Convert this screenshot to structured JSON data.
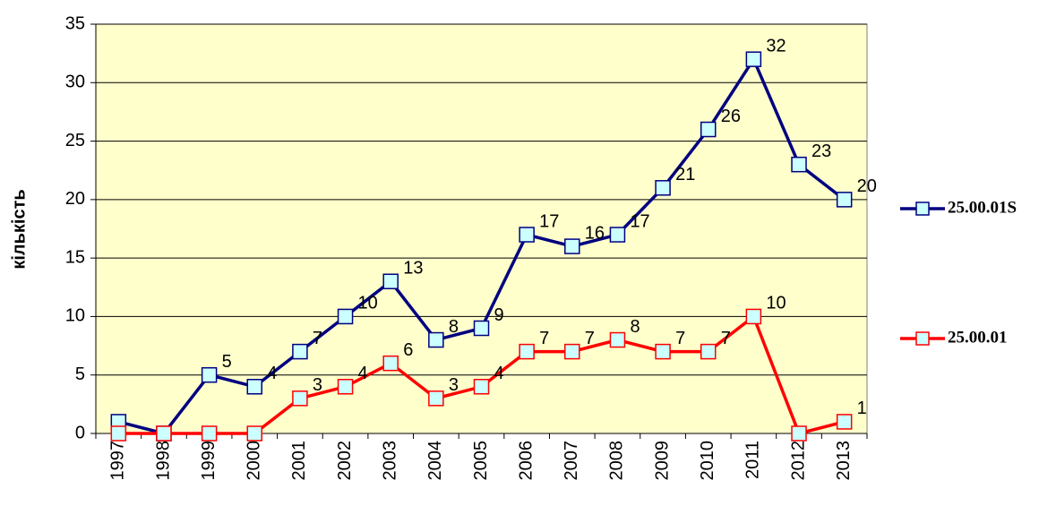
{
  "chart_data": {
    "type": "line",
    "y_label": "кількість",
    "categories": [
      "1997",
      "1998",
      "1999",
      "2000",
      "2001",
      "2002",
      "2003",
      "2004",
      "2005",
      "2006",
      "2007",
      "2008",
      "2009",
      "2010",
      "2011",
      "2012",
      "2013"
    ],
    "series": [
      {
        "name": "25.00.01S",
        "color": "#000080",
        "marker_fill": "#ccffff",
        "values": [
          1,
          0,
          5,
          4,
          7,
          10,
          13,
          8,
          9,
          17,
          16,
          17,
          21,
          26,
          32,
          23,
          20
        ],
        "value_labels": [
          null,
          null,
          "5",
          "4",
          "7",
          "10",
          "13",
          "8",
          "9",
          "17",
          "16",
          "17",
          "21",
          "26",
          "32",
          "23",
          "20"
        ]
      },
      {
        "name": "25.00.01",
        "color": "#ff0000",
        "marker_fill": "#ccffff",
        "values": [
          0,
          0,
          0,
          0,
          3,
          4,
          6,
          3,
          4,
          7,
          7,
          8,
          7,
          7,
          10,
          0,
          1
        ],
        "value_labels": [
          null,
          null,
          null,
          null,
          "3",
          "4",
          "6",
          "3",
          "4",
          "7",
          "7",
          "8",
          "7",
          "7",
          "10",
          null,
          "1"
        ]
      }
    ],
    "ylim": [
      0,
      35
    ],
    "yticks": [
      0,
      5,
      10,
      15,
      20,
      25,
      30,
      35
    ],
    "grid": true,
    "legend": "right",
    "plot_background": "#ffffcc"
  }
}
